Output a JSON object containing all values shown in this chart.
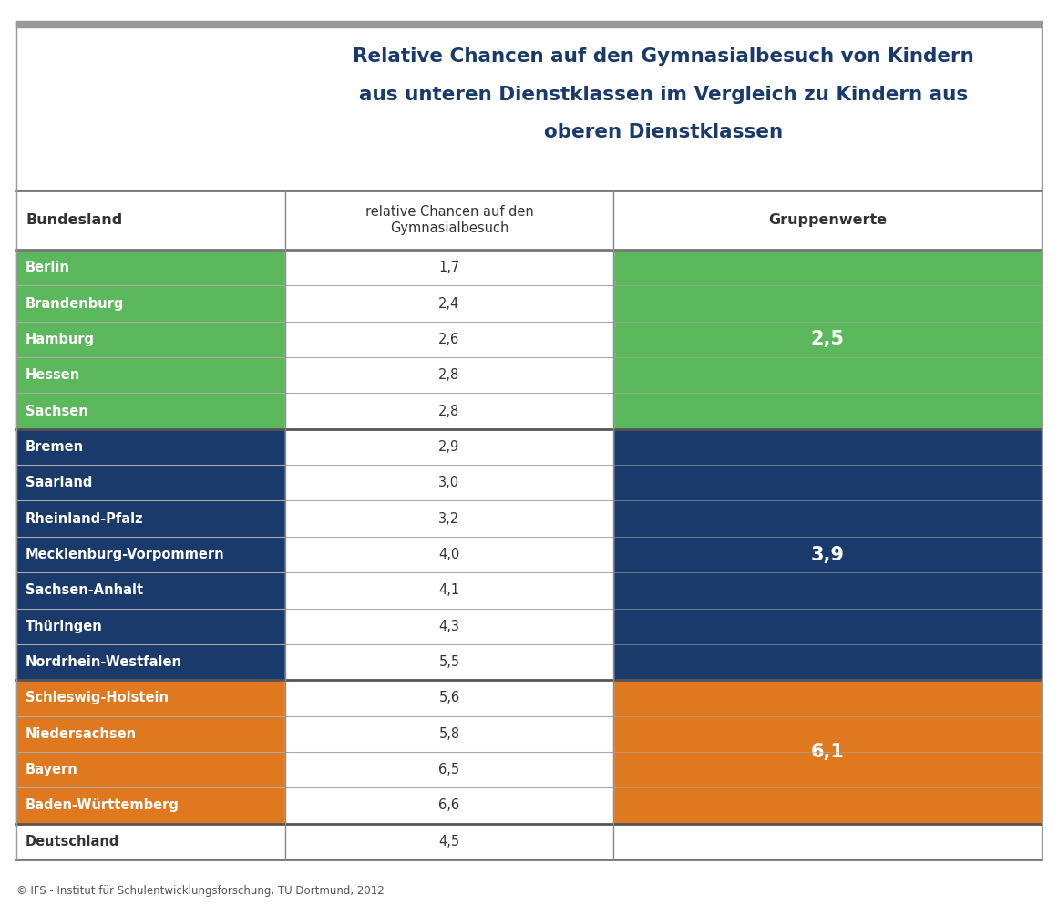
{
  "title_lines": [
    "Relative Chancen auf den Gymnasialbesuch von Kindern",
    "aus unteren Dienstklassen im Vergleich zu Kindern aus",
    "oberen Dienstklassen"
  ],
  "title_color": "#1a3a6b",
  "col_headers": [
    "Bundesland",
    "relative Chancen auf den\nGymnasialbesuch",
    "Gruppenwerte"
  ],
  "rows": [
    {
      "land": "Berlin",
      "value": "1,7",
      "group": 0
    },
    {
      "land": "Brandenburg",
      "value": "2,4",
      "group": 0
    },
    {
      "land": "Hamburg",
      "value": "2,6",
      "group": 0
    },
    {
      "land": "Hessen",
      "value": "2,8",
      "group": 0
    },
    {
      "land": "Sachsen",
      "value": "2,8",
      "group": 0
    },
    {
      "land": "Bremen",
      "value": "2,9",
      "group": 1
    },
    {
      "land": "Saarland",
      "value": "3,0",
      "group": 1
    },
    {
      "land": "Rheinland-Pfalz",
      "value": "3,2",
      "group": 1
    },
    {
      "land": "Mecklenburg-Vorpommern",
      "value": "4,0",
      "group": 1
    },
    {
      "land": "Sachsen-Anhalt",
      "value": "4,1",
      "group": 1
    },
    {
      "land": "Thüringen",
      "value": "4,3",
      "group": 1
    },
    {
      "land": "Nordrhein-Westfalen",
      "value": "5,5",
      "group": 1
    },
    {
      "land": "Schleswig-Holstein",
      "value": "5,6",
      "group": 2
    },
    {
      "land": "Niedersachsen",
      "value": "5,8",
      "group": 2
    },
    {
      "land": "Bayern",
      "value": "6,5",
      "group": 2
    },
    {
      "land": "Baden-Württemberg",
      "value": "6,6",
      "group": 2
    },
    {
      "land": "Deutschland",
      "value": "4,5",
      "group": -1
    }
  ],
  "group_values": [
    "2,5",
    "3,9",
    "6,1"
  ],
  "group_colors": [
    "#5cb85c",
    "#1a3a6b",
    "#e07820"
  ],
  "group_row_ranges": [
    [
      0,
      4
    ],
    [
      5,
      11
    ],
    [
      12,
      15
    ]
  ],
  "footer_text": "© IFS - Institut für Schulentwicklungsforschung, TU Dortmund, 2012",
  "bg_color": "#ffffff",
  "top_bar_color": "#999999"
}
